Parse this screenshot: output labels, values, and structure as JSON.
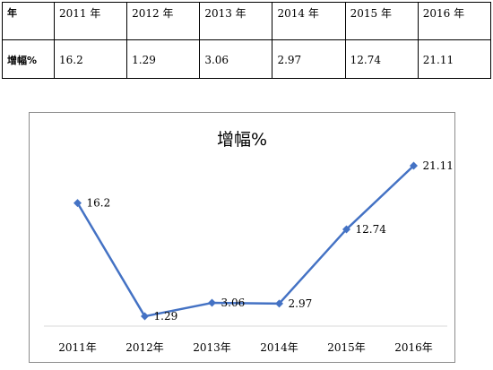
{
  "table": {
    "header_label": "年",
    "row_label": "增幅%",
    "years": [
      "2011 年",
      "2012 年",
      "2013 年",
      "2014 年",
      "2015 年",
      "2016 年"
    ],
    "values": [
      "16.2",
      "1.29",
      "3.06",
      "2.97",
      "12.74",
      "21.11"
    ]
  },
  "chart_data": {
    "type": "line",
    "title": "增幅%",
    "categories": [
      "2011年",
      "2012年",
      "2013年",
      "2014年",
      "2015年",
      "2016年"
    ],
    "series": [
      {
        "values": [
          16.2,
          1.29,
          3.06,
          2.97,
          12.74,
          21.11
        ],
        "labels": [
          "16.2",
          "1.29",
          "3.06",
          "2.97",
          "12.74",
          "21.11"
        ]
      }
    ],
    "xlabel": "",
    "ylabel": "",
    "ylim": [
      0,
      25
    ],
    "grid": false,
    "legend": "none",
    "line_color": "#4472c4",
    "marker": "diamond"
  }
}
